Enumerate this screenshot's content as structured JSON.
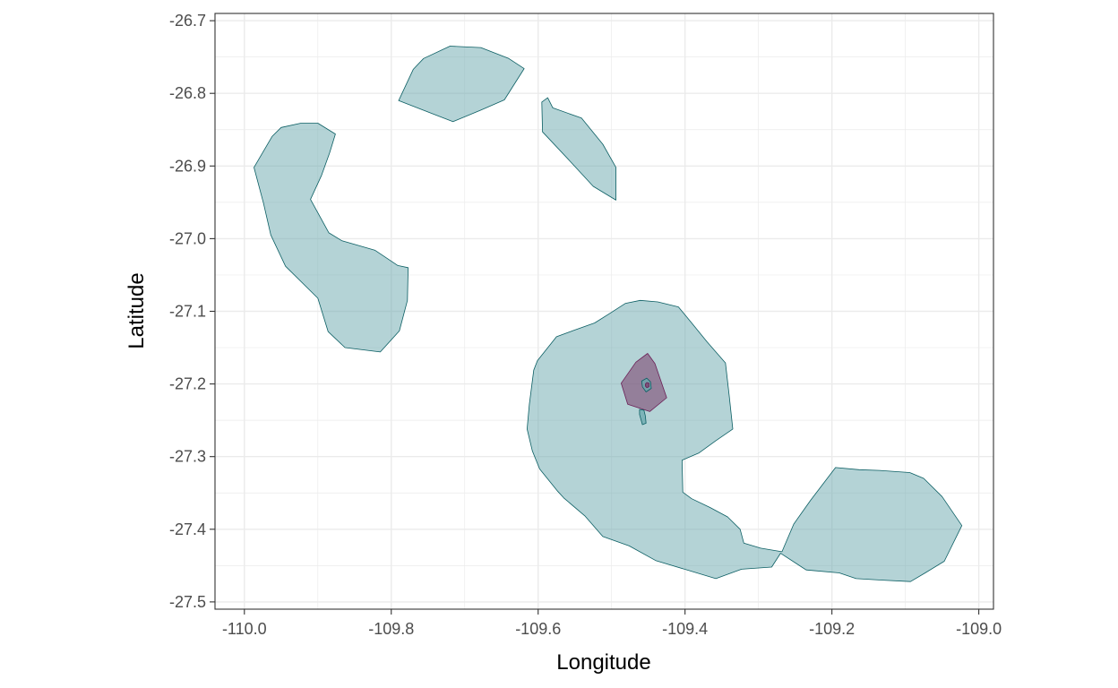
{
  "chart_data": {
    "type": "area",
    "xlabel": "Longitude",
    "ylabel": "Latitude",
    "xlim": [
      -110.04,
      -108.98
    ],
    "ylim": [
      -27.51,
      -26.69
    ],
    "x_ticks": [
      -110.0,
      -109.8,
      -109.6,
      -109.4,
      -109.2,
      -109.0
    ],
    "x_tick_labels": [
      "-110.0",
      "-109.8",
      "-109.6",
      "-109.4",
      "-109.2",
      "-109.0"
    ],
    "y_ticks": [
      -26.7,
      -26.8,
      -26.9,
      -27.0,
      -27.1,
      -27.2,
      -27.3,
      -27.4,
      -27.5
    ],
    "y_tick_labels": [
      "-26.7",
      "-26.8",
      "-26.9",
      "-27.0",
      "-27.1",
      "-27.2",
      "-27.3",
      "-27.4",
      "-27.5"
    ],
    "grid": true,
    "legend": "none",
    "colors": {
      "low_fill": "#6aa8ae",
      "low_stroke": "#0b5e63",
      "high_fill": "#7a3a6a",
      "high_stroke": "#6b1f56",
      "panel_border": "#333333",
      "grid": "#ebebeb"
    },
    "regions": [
      {
        "level": "low",
        "points": [
          [
            -109.987,
            -26.902
          ],
          [
            -109.962,
            -26.859
          ],
          [
            -109.95,
            -26.847
          ],
          [
            -109.923,
            -26.841
          ],
          [
            -109.9,
            -26.841
          ],
          [
            -109.876,
            -26.856
          ],
          [
            -109.884,
            -26.882
          ],
          [
            -109.895,
            -26.913
          ],
          [
            -109.91,
            -26.946
          ],
          [
            -109.885,
            -26.992
          ],
          [
            -109.867,
            -27.003
          ],
          [
            -109.822,
            -27.016
          ],
          [
            -109.791,
            -27.037
          ],
          [
            -109.777,
            -27.04
          ],
          [
            -109.778,
            -27.085
          ],
          [
            -109.789,
            -27.127
          ],
          [
            -109.815,
            -27.156
          ],
          [
            -109.863,
            -27.15
          ],
          [
            -109.886,
            -27.128
          ],
          [
            -109.9,
            -27.082
          ],
          [
            -109.944,
            -27.038
          ],
          [
            -109.964,
            -26.995
          ],
          [
            -109.974,
            -26.951
          ]
        ]
      },
      {
        "level": "low",
        "points": [
          [
            -109.79,
            -26.81
          ],
          [
            -109.77,
            -26.767
          ],
          [
            -109.756,
            -26.752
          ],
          [
            -109.72,
            -26.735
          ],
          [
            -109.678,
            -26.737
          ],
          [
            -109.64,
            -26.752
          ],
          [
            -109.619,
            -26.766
          ],
          [
            -109.646,
            -26.809
          ],
          [
            -109.678,
            -26.823
          ],
          [
            -109.716,
            -26.839
          ]
        ]
      },
      {
        "level": "low",
        "points": [
          [
            -109.594,
            -26.853
          ],
          [
            -109.595,
            -26.812
          ],
          [
            -109.587,
            -26.806
          ],
          [
            -109.58,
            -26.82
          ],
          [
            -109.541,
            -26.834
          ],
          [
            -109.512,
            -26.87
          ],
          [
            -109.494,
            -26.902
          ],
          [
            -109.494,
            -26.947
          ],
          [
            -109.525,
            -26.928
          ],
          [
            -109.557,
            -26.893
          ]
        ]
      },
      {
        "level": "low",
        "points": [
          [
            -109.598,
            -27.317
          ],
          [
            -109.574,
            -27.347
          ],
          [
            -109.565,
            -27.357
          ],
          [
            -109.536,
            -27.382
          ],
          [
            -109.512,
            -27.41
          ],
          [
            -109.476,
            -27.423
          ],
          [
            -109.44,
            -27.443
          ],
          [
            -109.358,
            -27.468
          ],
          [
            -109.323,
            -27.455
          ],
          [
            -109.282,
            -27.452
          ],
          [
            -109.27,
            -27.433
          ],
          [
            -109.235,
            -27.456
          ],
          [
            -109.19,
            -27.46
          ],
          [
            -109.167,
            -27.468
          ],
          [
            -109.131,
            -27.47
          ],
          [
            -109.093,
            -27.472
          ],
          [
            -109.073,
            -27.46
          ],
          [
            -109.047,
            -27.444
          ],
          [
            -109.023,
            -27.395
          ],
          [
            -109.05,
            -27.355
          ],
          [
            -109.075,
            -27.33
          ],
          [
            -109.094,
            -27.322
          ],
          [
            -109.135,
            -27.319
          ],
          [
            -109.163,
            -27.318
          ],
          [
            -109.195,
            -27.315
          ],
          [
            -109.229,
            -27.36
          ],
          [
            -109.252,
            -27.393
          ],
          [
            -109.268,
            -27.431
          ],
          [
            -109.297,
            -27.426
          ],
          [
            -109.32,
            -27.419
          ],
          [
            -109.325,
            -27.4
          ],
          [
            -109.342,
            -27.383
          ],
          [
            -109.366,
            -27.37
          ],
          [
            -109.391,
            -27.358
          ],
          [
            -109.403,
            -27.349
          ],
          [
            -109.404,
            -27.305
          ],
          [
            -109.381,
            -27.295
          ],
          [
            -109.358,
            -27.278
          ],
          [
            -109.335,
            -27.262
          ],
          [
            -109.34,
            -27.215
          ],
          [
            -109.345,
            -27.171
          ],
          [
            -109.37,
            -27.142
          ],
          [
            -109.391,
            -27.116
          ],
          [
            -109.409,
            -27.094
          ],
          [
            -109.437,
            -27.087
          ],
          [
            -109.461,
            -27.085
          ],
          [
            -109.481,
            -27.089
          ],
          [
            -109.504,
            -27.104
          ],
          [
            -109.523,
            -27.116
          ],
          [
            -109.551,
            -27.126
          ],
          [
            -109.575,
            -27.135
          ],
          [
            -109.601,
            -27.168
          ],
          [
            -109.606,
            -27.181
          ],
          [
            -109.612,
            -27.228
          ],
          [
            -109.615,
            -27.262
          ],
          [
            -109.608,
            -27.292
          ]
        ]
      },
      {
        "level": "mid",
        "points": [
          [
            -109.478,
            -27.228
          ],
          [
            -109.448,
            -27.238
          ],
          [
            -109.425,
            -27.219
          ],
          [
            -109.441,
            -27.172
          ],
          [
            -109.451,
            -27.158
          ],
          [
            -109.467,
            -27.17
          ],
          [
            -109.487,
            -27.199
          ]
        ]
      },
      {
        "level": "inner",
        "points": [
          [
            -109.458,
            -27.204
          ],
          [
            -109.453,
            -27.211
          ],
          [
            -109.446,
            -27.206
          ],
          [
            -109.447,
            -27.197
          ],
          [
            -109.452,
            -27.192
          ],
          [
            -109.459,
            -27.196
          ]
        ]
      },
      {
        "level": "inner",
        "points": [
          [
            -109.462,
            -27.242
          ],
          [
            -109.458,
            -27.256
          ],
          [
            -109.453,
            -27.254
          ],
          [
            -109.454,
            -27.244
          ],
          [
            -109.456,
            -27.236
          ],
          [
            -109.462,
            -27.235
          ]
        ]
      },
      {
        "level": "peak",
        "points": [
          [
            -109.454,
            -27.203
          ],
          [
            -109.452,
            -27.205
          ],
          [
            -109.449,
            -27.204
          ],
          [
            -109.449,
            -27.199
          ],
          [
            -109.452,
            -27.198
          ],
          [
            -109.454,
            -27.2
          ]
        ]
      }
    ]
  }
}
